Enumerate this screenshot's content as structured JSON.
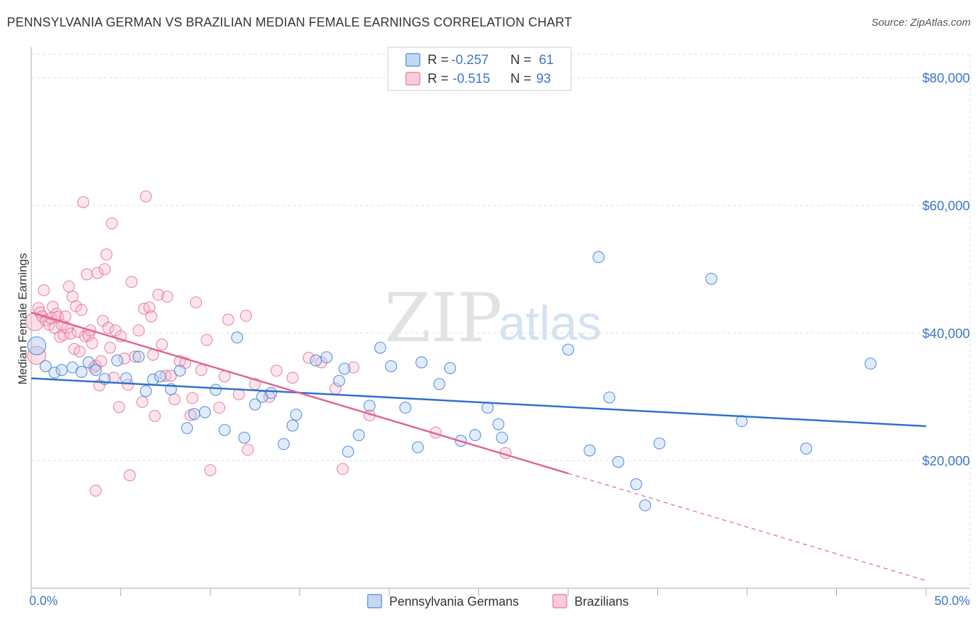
{
  "title": "PENNSYLVANIA GERMAN VS BRAZILIAN MEDIAN FEMALE EARNINGS CORRELATION CHART",
  "source": "Source: ZipAtlas.com",
  "watermark": {
    "zip": "ZIP",
    "atlas": "atlas"
  },
  "colors": {
    "blue": "#4a86d8",
    "blue_fill": "#a9c8f0",
    "blue_line": "#2e6fcb",
    "pink": "#e8789f",
    "pink_fill": "#f6b6cb",
    "pink_line": "#e0648f",
    "axis_text": "#3d78c9",
    "grid": "#dddddd"
  },
  "legend": {
    "rows": [
      {
        "r_label": "R =",
        "r_value": "-0.257",
        "n_label": "N =",
        "n_value": "61"
      },
      {
        "r_label": "R =",
        "r_value": "-0.515",
        "n_label": "N =",
        "n_value": "93"
      }
    ]
  },
  "bottom_legend": [
    "Pennsylvania Germans",
    "Brazilians"
  ],
  "chart_data": {
    "type": "scatter",
    "title": "PENNSYLVANIA GERMAN VS BRAZILIAN MEDIAN FEMALE EARNINGS CORRELATION CHART",
    "xlabel": "",
    "ylabel": "Median Female Earnings",
    "xlim": [
      0,
      50
    ],
    "ylim": [
      0,
      84000
    ],
    "x_tick_labels": [
      "0.0%",
      "50.0%"
    ],
    "y_ticks": [
      20000,
      40000,
      60000,
      80000
    ],
    "y_tick_labels": [
      "$20,000",
      "$40,000",
      "$60,000",
      "$80,000"
    ],
    "grid": true,
    "legend_position": "top-center",
    "series": [
      {
        "name": "Pennsylvania Germans",
        "r": -0.257,
        "n": 61,
        "trend": {
          "x": [
            0,
            50
          ],
          "y": [
            32900,
            25400
          ]
        },
        "points": [
          [
            0.3,
            38000
          ],
          [
            0.8,
            34800
          ],
          [
            1.3,
            33800
          ],
          [
            1.7,
            34200
          ],
          [
            2.3,
            34600
          ],
          [
            2.8,
            33900
          ],
          [
            3.2,
            35400
          ],
          [
            3.6,
            34200
          ],
          [
            4.1,
            32800
          ],
          [
            4.8,
            35700
          ],
          [
            5.3,
            32900
          ],
          [
            6.0,
            36300
          ],
          [
            6.4,
            30900
          ],
          [
            6.8,
            32700
          ],
          [
            7.2,
            33200
          ],
          [
            7.8,
            31200
          ],
          [
            8.3,
            34100
          ],
          [
            8.7,
            25100
          ],
          [
            9.1,
            27300
          ],
          [
            9.7,
            27600
          ],
          [
            10.3,
            31100
          ],
          [
            10.8,
            24800
          ],
          [
            11.5,
            39300
          ],
          [
            11.9,
            23600
          ],
          [
            12.5,
            28800
          ],
          [
            12.9,
            30000
          ],
          [
            13.4,
            30600
          ],
          [
            14.1,
            22600
          ],
          [
            14.6,
            25500
          ],
          [
            14.8,
            27200
          ],
          [
            15.9,
            35700
          ],
          [
            16.5,
            36200
          ],
          [
            17.2,
            32500
          ],
          [
            17.5,
            34400
          ],
          [
            17.7,
            21400
          ],
          [
            18.3,
            24000
          ],
          [
            18.9,
            28600
          ],
          [
            19.5,
            37700
          ],
          [
            20.1,
            34800
          ],
          [
            20.9,
            28300
          ],
          [
            21.6,
            22100
          ],
          [
            21.8,
            35400
          ],
          [
            22.8,
            32000
          ],
          [
            23.4,
            34500
          ],
          [
            24.0,
            23100
          ],
          [
            24.8,
            24000
          ],
          [
            25.5,
            28300
          ],
          [
            26.1,
            25700
          ],
          [
            26.3,
            23600
          ],
          [
            30.0,
            37400
          ],
          [
            31.2,
            21600
          ],
          [
            31.7,
            51900
          ],
          [
            32.3,
            29900
          ],
          [
            32.8,
            19800
          ],
          [
            33.8,
            16300
          ],
          [
            34.3,
            13000
          ],
          [
            35.1,
            22700
          ],
          [
            38.0,
            48500
          ],
          [
            39.7,
            26200
          ],
          [
            43.3,
            21900
          ],
          [
            46.9,
            35200
          ]
        ]
      },
      {
        "name": "Brazilians",
        "r": -0.515,
        "n": 93,
        "trend": {
          "x": [
            0,
            30
          ],
          "y": [
            43200,
            18000
          ],
          "dashed_to": [
            50,
            1200
          ]
        },
        "points": [
          [
            0.2,
            41800
          ],
          [
            0.3,
            36500
          ],
          [
            0.4,
            43900
          ],
          [
            0.5,
            43200
          ],
          [
            0.6,
            42600
          ],
          [
            0.7,
            46700
          ],
          [
            0.8,
            42000
          ],
          [
            1.0,
            41300
          ],
          [
            1.1,
            42300
          ],
          [
            1.2,
            44100
          ],
          [
            1.3,
            40800
          ],
          [
            1.4,
            43000
          ],
          [
            1.5,
            42500
          ],
          [
            1.6,
            39400
          ],
          [
            1.7,
            41300
          ],
          [
            1.8,
            39700
          ],
          [
            1.9,
            42600
          ],
          [
            2.0,
            40800
          ],
          [
            2.1,
            47300
          ],
          [
            2.2,
            39900
          ],
          [
            2.3,
            45700
          ],
          [
            2.4,
            37500
          ],
          [
            2.5,
            44200
          ],
          [
            2.6,
            40200
          ],
          [
            2.7,
            37100
          ],
          [
            2.8,
            43600
          ],
          [
            2.9,
            60500
          ],
          [
            3.0,
            39500
          ],
          [
            3.1,
            49200
          ],
          [
            3.2,
            39600
          ],
          [
            3.3,
            40400
          ],
          [
            3.4,
            38400
          ],
          [
            3.5,
            34600
          ],
          [
            3.6,
            34900
          ],
          [
            3.7,
            49400
          ],
          [
            3.8,
            31800
          ],
          [
            3.9,
            35600
          ],
          [
            4.0,
            41900
          ],
          [
            4.1,
            50000
          ],
          [
            4.2,
            52300
          ],
          [
            4.3,
            40800
          ],
          [
            4.4,
            37700
          ],
          [
            4.5,
            57200
          ],
          [
            4.6,
            33000
          ],
          [
            4.7,
            40400
          ],
          [
            4.9,
            28400
          ],
          [
            5.0,
            39500
          ],
          [
            5.2,
            36000
          ],
          [
            5.4,
            31900
          ],
          [
            5.5,
            17700
          ],
          [
            5.6,
            48000
          ],
          [
            5.8,
            36300
          ],
          [
            6.0,
            40400
          ],
          [
            6.2,
            29200
          ],
          [
            6.3,
            43800
          ],
          [
            6.4,
            61400
          ],
          [
            6.6,
            44000
          ],
          [
            6.7,
            42600
          ],
          [
            6.8,
            36600
          ],
          [
            6.9,
            27000
          ],
          [
            7.1,
            46000
          ],
          [
            7.3,
            38200
          ],
          [
            7.5,
            33300
          ],
          [
            7.6,
            45700
          ],
          [
            7.8,
            33300
          ],
          [
            8.0,
            29600
          ],
          [
            8.3,
            35600
          ],
          [
            8.6,
            35300
          ],
          [
            8.9,
            27100
          ],
          [
            9.0,
            29800
          ],
          [
            9.2,
            44800
          ],
          [
            9.5,
            34200
          ],
          [
            9.8,
            38900
          ],
          [
            10.0,
            18500
          ],
          [
            10.5,
            28300
          ],
          [
            10.8,
            33200
          ],
          [
            11.0,
            42100
          ],
          [
            11.6,
            30400
          ],
          [
            12.0,
            42700
          ],
          [
            12.1,
            21700
          ],
          [
            12.5,
            32000
          ],
          [
            13.3,
            30000
          ],
          [
            13.7,
            34100
          ],
          [
            14.6,
            33000
          ],
          [
            15.5,
            36100
          ],
          [
            16.2,
            35400
          ],
          [
            17.0,
            31300
          ],
          [
            17.4,
            18700
          ],
          [
            18.0,
            34600
          ],
          [
            18.9,
            27100
          ],
          [
            22.6,
            24400
          ],
          [
            26.5,
            21200
          ],
          [
            3.6,
            15300
          ]
        ]
      }
    ]
  }
}
